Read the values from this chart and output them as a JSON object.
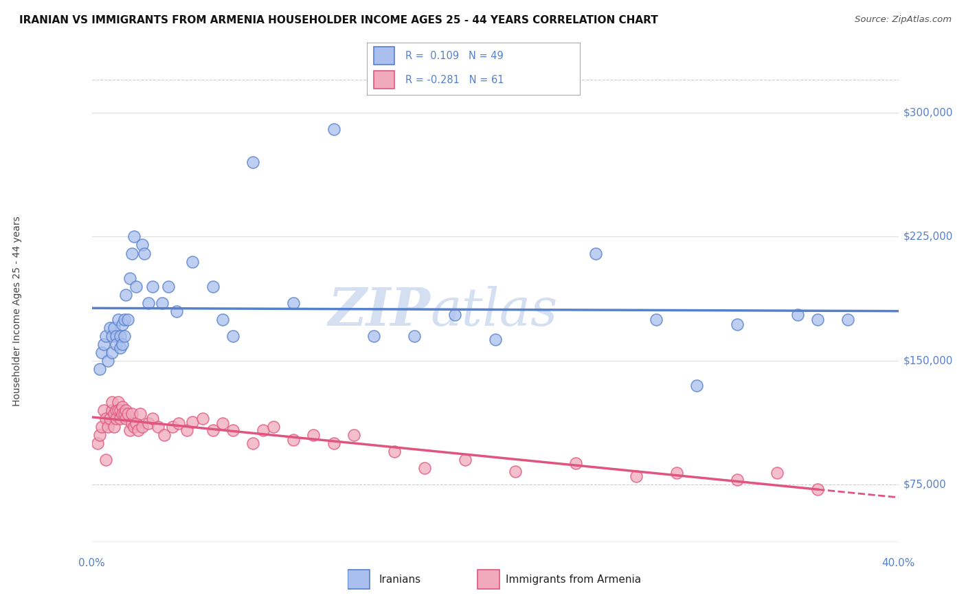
{
  "title": "IRANIAN VS IMMIGRANTS FROM ARMENIA HOUSEHOLDER INCOME AGES 25 - 44 YEARS CORRELATION CHART",
  "source": "Source: ZipAtlas.com",
  "ylabel": "Householder Income Ages 25 - 44 years",
  "background_color": "#ffffff",
  "plot_bg_color": "#ffffff",
  "grid_color_solid": "#dddddd",
  "grid_color_dashed": "#cccccc",
  "iranians_color": "#5580cc",
  "iranians_fill": "#aabfee",
  "armenia_color": "#e05580",
  "armenia_fill": "#f0aabb",
  "R_iranian": 0.109,
  "N_iranian": 49,
  "R_armenia": -0.281,
  "N_armenia": 61,
  "xlim": [
    0.0,
    0.4
  ],
  "ylim": [
    40000,
    320000
  ],
  "yticks_solid": [
    150000,
    225000,
    300000
  ],
  "yticks_dashed": [
    75000
  ],
  "ytick_labels": [
    "$75,000",
    "$150,000",
    "$225,000",
    "$300,000"
  ],
  "ytick_values": [
    75000,
    150000,
    225000,
    300000
  ],
  "watermark_zip": "ZIP",
  "watermark_atlas": "atlas",
  "iranians_x": [
    0.004,
    0.005,
    0.006,
    0.007,
    0.008,
    0.009,
    0.01,
    0.01,
    0.011,
    0.012,
    0.012,
    0.013,
    0.014,
    0.014,
    0.015,
    0.015,
    0.016,
    0.016,
    0.017,
    0.018,
    0.019,
    0.02,
    0.021,
    0.022,
    0.025,
    0.026,
    0.028,
    0.03,
    0.035,
    0.038,
    0.042,
    0.05,
    0.06,
    0.065,
    0.07,
    0.08,
    0.1,
    0.12,
    0.14,
    0.16,
    0.18,
    0.2,
    0.25,
    0.28,
    0.3,
    0.32,
    0.35,
    0.36,
    0.375
  ],
  "iranians_y": [
    145000,
    155000,
    160000,
    165000,
    150000,
    170000,
    165000,
    155000,
    170000,
    165000,
    160000,
    175000,
    165000,
    158000,
    172000,
    160000,
    175000,
    165000,
    190000,
    175000,
    200000,
    215000,
    225000,
    195000,
    220000,
    215000,
    185000,
    195000,
    185000,
    195000,
    180000,
    210000,
    195000,
    175000,
    165000,
    270000,
    185000,
    290000,
    165000,
    165000,
    178000,
    163000,
    215000,
    175000,
    135000,
    172000,
    178000,
    175000,
    175000
  ],
  "armenia_x": [
    0.003,
    0.004,
    0.005,
    0.006,
    0.007,
    0.007,
    0.008,
    0.009,
    0.01,
    0.01,
    0.011,
    0.011,
    0.012,
    0.012,
    0.013,
    0.013,
    0.014,
    0.014,
    0.015,
    0.015,
    0.016,
    0.017,
    0.017,
    0.018,
    0.019,
    0.02,
    0.02,
    0.021,
    0.022,
    0.023,
    0.024,
    0.025,
    0.028,
    0.03,
    0.033,
    0.036,
    0.04,
    0.043,
    0.047,
    0.05,
    0.055,
    0.06,
    0.065,
    0.07,
    0.08,
    0.085,
    0.09,
    0.1,
    0.11,
    0.12,
    0.13,
    0.15,
    0.165,
    0.185,
    0.21,
    0.24,
    0.27,
    0.29,
    0.32,
    0.34,
    0.36
  ],
  "armenia_y": [
    100000,
    105000,
    110000,
    120000,
    115000,
    90000,
    110000,
    115000,
    120000,
    125000,
    110000,
    118000,
    120000,
    115000,
    125000,
    120000,
    120000,
    115000,
    122000,
    118000,
    118000,
    120000,
    115000,
    118000,
    108000,
    112000,
    118000,
    110000,
    112000,
    108000,
    118000,
    110000,
    112000,
    115000,
    110000,
    105000,
    110000,
    112000,
    108000,
    113000,
    115000,
    108000,
    112000,
    108000,
    100000,
    108000,
    110000,
    102000,
    105000,
    100000,
    105000,
    95000,
    85000,
    90000,
    83000,
    88000,
    80000,
    82000,
    78000,
    82000,
    72000
  ]
}
